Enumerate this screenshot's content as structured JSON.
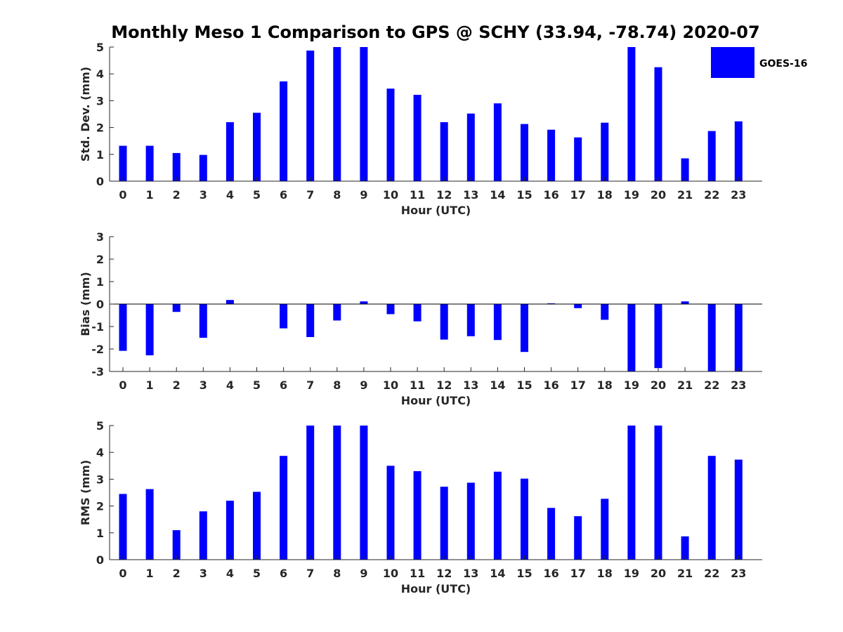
{
  "title": "Monthly Meso 1 Comparison to GPS @ SCHY (33.94, -78.74) 2020-07",
  "legend": {
    "label": "GOES-16",
    "color": "#0000ff"
  },
  "chart_data": [
    {
      "type": "bar",
      "name": "std-dev",
      "title": "Monthly Meso 1 Comparison to GPS @ SCHY (33.94, -78.74) 2020-07",
      "xlabel": "Hour (UTC)",
      "ylabel": "Std. Dev. (mm)",
      "ylim": [
        0,
        5
      ],
      "yticks": [
        "0",
        "1",
        "2",
        "3",
        "4",
        "5"
      ],
      "categories": [
        "0",
        "1",
        "2",
        "3",
        "4",
        "5",
        "6",
        "7",
        "8",
        "9",
        "10",
        "11",
        "12",
        "13",
        "14",
        "15",
        "16",
        "17",
        "18",
        "19",
        "20",
        "21",
        "22",
        "23"
      ],
      "series": [
        {
          "name": "GOES-16",
          "values": [
            1.32,
            1.32,
            1.05,
            0.98,
            2.2,
            2.55,
            3.72,
            4.87,
            5.0,
            5.0,
            3.45,
            3.22,
            2.2,
            2.52,
            2.9,
            2.13,
            1.92,
            1.63,
            2.18,
            5.0,
            4.25,
            0.85,
            1.87,
            2.23
          ]
        }
      ],
      "color": "#0000ff"
    },
    {
      "type": "bar",
      "name": "bias",
      "xlabel": "Hour (UTC)",
      "ylabel": "Bias (mm)",
      "ylim": [
        -3,
        3
      ],
      "yticks": [
        "-3",
        "-2",
        "-1",
        "0",
        "1",
        "2",
        "3"
      ],
      "categories": [
        "0",
        "1",
        "2",
        "3",
        "4",
        "5",
        "6",
        "7",
        "8",
        "9",
        "10",
        "11",
        "12",
        "13",
        "14",
        "15",
        "16",
        "17",
        "18",
        "19",
        "20",
        "21",
        "22",
        "23"
      ],
      "series": [
        {
          "name": "GOES-16",
          "values": [
            -2.08,
            -2.28,
            -0.35,
            -1.5,
            0.18,
            0.0,
            -1.08,
            -1.47,
            -0.73,
            0.12,
            -0.45,
            -0.77,
            -1.58,
            -1.43,
            -1.6,
            -2.13,
            0.03,
            -0.18,
            -0.7,
            -3.0,
            -2.85,
            0.12,
            -3.0,
            -3.0
          ]
        }
      ],
      "color": "#0000ff"
    },
    {
      "type": "bar",
      "name": "rms",
      "xlabel": "Hour (UTC)",
      "ylabel": "RMS (mm)",
      "ylim": [
        0,
        5
      ],
      "yticks": [
        "0",
        "1",
        "2",
        "3",
        "4",
        "5"
      ],
      "categories": [
        "0",
        "1",
        "2",
        "3",
        "4",
        "5",
        "6",
        "7",
        "8",
        "9",
        "10",
        "11",
        "12",
        "13",
        "14",
        "15",
        "16",
        "17",
        "18",
        "19",
        "20",
        "21",
        "22",
        "23"
      ],
      "series": [
        {
          "name": "GOES-16",
          "values": [
            2.45,
            2.63,
            1.1,
            1.8,
            2.2,
            2.53,
            3.87,
            5.0,
            5.0,
            5.0,
            3.5,
            3.3,
            2.72,
            2.87,
            3.28,
            3.02,
            1.93,
            1.62,
            2.27,
            5.0,
            5.0,
            0.87,
            3.87,
            3.73
          ]
        }
      ],
      "color": "#0000ff"
    }
  ]
}
